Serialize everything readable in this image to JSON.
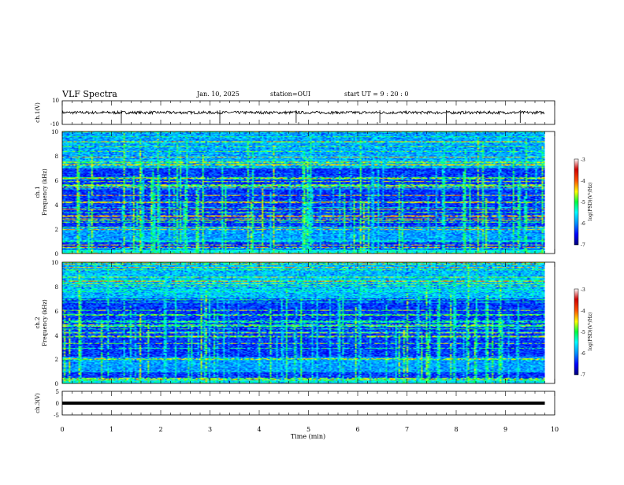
{
  "header": {
    "title": "VLF Spectra",
    "date": "Jan. 10, 2025",
    "station": "station=OUI",
    "start": "start  UT =   9 : 20 : 0"
  },
  "chart_data": [
    {
      "type": "line",
      "title": "",
      "ylabel": "ch.1(V)",
      "xlim": [
        0,
        10
      ],
      "ylim": [
        -10,
        10
      ],
      "yticks": [
        "10",
        "-10"
      ],
      "series": [
        {
          "name": "",
          "baseline": 0,
          "noise_amplitude": 1.2,
          "spikes_at_min": [
            1.2,
            3.2,
            4.75,
            6.45,
            7.8,
            9.3
          ]
        }
      ]
    },
    {
      "type": "heatmap",
      "title": "",
      "ylabel": "Frequency (kHz)",
      "channel_label": "ch.1",
      "xlim": [
        0,
        10
      ],
      "ylim": [
        0,
        10
      ],
      "yticks": [
        "10",
        "8",
        "6",
        "4",
        "2",
        "0"
      ],
      "data_extent_min": 9.8,
      "colorbar": {
        "label": "log(PSD)(V²/Hz)",
        "ticks": [
          "-3",
          "-4",
          "-5",
          "-6",
          "-7"
        ],
        "range": [
          -7,
          -3
        ],
        "colors": [
          "#00007a",
          "#0000ff",
          "#0090ff",
          "#00ffff",
          "#00ff40",
          "#ffff00",
          "#ff5000",
          "#d00000",
          "#ffffff"
        ]
      }
    },
    {
      "type": "heatmap",
      "title": "",
      "ylabel": "Frequency (kHz)",
      "channel_label": "ch.2",
      "xlim": [
        0,
        10
      ],
      "ylim": [
        0,
        10
      ],
      "yticks": [
        "10",
        "8",
        "6",
        "4",
        "2",
        "0"
      ],
      "data_extent_min": 9.8,
      "colorbar": {
        "label": "log(PSD)(V²/Hz)",
        "ticks": [
          "-3",
          "-4",
          "-5",
          "-6",
          "-7"
        ],
        "range": [
          -7,
          -3
        ],
        "colors": [
          "#00007a",
          "#0000ff",
          "#0090ff",
          "#00ffff",
          "#00ff40",
          "#ffff00",
          "#ff5000",
          "#d00000",
          "#ffffff"
        ]
      }
    },
    {
      "type": "line",
      "title": "",
      "ylabel": "ch.3(V)",
      "xlabel": "Time (min)",
      "xlim": [
        0,
        10
      ],
      "ylim": [
        -5,
        5
      ],
      "yticks": [
        "5",
        "0",
        "-5"
      ],
      "xticks": [
        "0",
        "1",
        "2",
        "3",
        "4",
        "5",
        "6",
        "7",
        "8",
        "9",
        "10"
      ],
      "series": [
        {
          "name": "",
          "values": [
            0,
            0
          ],
          "x": [
            0,
            9.8
          ]
        }
      ]
    }
  ]
}
